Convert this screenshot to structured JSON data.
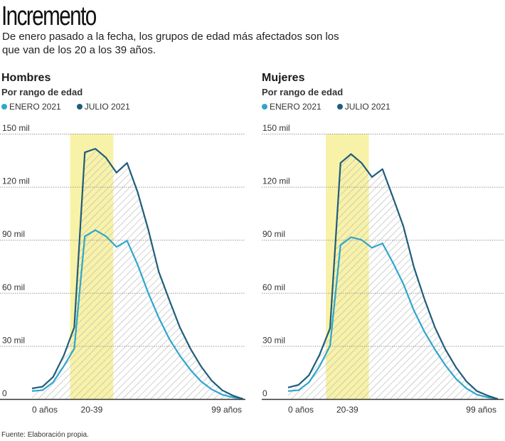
{
  "title": "Incremento",
  "subtitle": "De enero pasado a la fecha, los grupos de edad más afectados son los que van de los 20 a los 39 años.",
  "source": "Fuente: Elaboración propia.",
  "colors": {
    "enero": "#2fa6cc",
    "julio": "#1f5d7a",
    "highlight": "#f8f2a8",
    "hatch": "#bcbcbc",
    "grid": "#9a9a9a",
    "axis": "#333333"
  },
  "legend": [
    {
      "label": "ENERO 2021",
      "color": "#2fa6cc"
    },
    {
      "label": "JULIO 2021",
      "color": "#1f5d7a"
    }
  ],
  "chart_data": [
    {
      "type": "line",
      "title": "Hombres",
      "subtitle": "Por rango de edad",
      "ylim": [
        0,
        150000
      ],
      "yticks": [
        0,
        30000,
        60000,
        90000,
        120000,
        150000
      ],
      "yticklabels": [
        "0",
        "30 mil",
        "60 mil",
        "90 mil",
        "120 mil",
        "150 mil"
      ],
      "xticklabels": [
        {
          "label": "0 años",
          "index": 0
        },
        {
          "label": "20-39",
          "index": 5
        },
        {
          "label": "99 años",
          "index": 20
        }
      ],
      "highlight_range_label": "20-39",
      "highlight_range": [
        3.6,
        7.7
      ],
      "grid": true,
      "legend_position": "top-left",
      "x": [
        0,
        1,
        2,
        3,
        4,
        5,
        6,
        7,
        8,
        9,
        10,
        11,
        12,
        13,
        14,
        15,
        16,
        17,
        18,
        19,
        20
      ],
      "series": [
        {
          "name": "ENERO 2021",
          "values": [
            4500,
            5000,
            9500,
            18500,
            28500,
            92000,
            95500,
            92000,
            86000,
            89500,
            76000,
            60000,
            46000,
            34000,
            24500,
            16500,
            10000,
            5500,
            2500,
            1000,
            0
          ]
        },
        {
          "name": "JULIO 2021",
          "values": [
            6000,
            7000,
            12500,
            24500,
            40500,
            139500,
            141500,
            136500,
            128000,
            133500,
            117000,
            96000,
            72000,
            56000,
            40500,
            28500,
            18500,
            10500,
            5000,
            2000,
            0
          ]
        }
      ]
    },
    {
      "type": "line",
      "title": "Mujeres",
      "subtitle": "Por rango de edad",
      "ylim": [
        0,
        150000
      ],
      "yticks": [
        0,
        30000,
        60000,
        90000,
        120000,
        150000
      ],
      "yticklabels": [
        "0",
        "30 mil",
        "60 mil",
        "90 mil",
        "120 mil",
        "150 mil"
      ],
      "xticklabels": [
        {
          "label": "0 años",
          "index": 0
        },
        {
          "label": "20-39",
          "index": 5
        },
        {
          "label": "99 años",
          "index": 20
        }
      ],
      "highlight_range_label": "20-39",
      "highlight_range": [
        3.6,
        7.7
      ],
      "grid": true,
      "legend_position": "top-left",
      "x": [
        0,
        1,
        2,
        3,
        4,
        5,
        6,
        7,
        8,
        9,
        10,
        11,
        12,
        13,
        14,
        15,
        16,
        17,
        18,
        19,
        20
      ],
      "series": [
        {
          "name": "ENERO 2021",
          "values": [
            4500,
            5000,
            9500,
            18500,
            30000,
            87000,
            91500,
            90000,
            85500,
            88000,
            77000,
            65000,
            50000,
            38000,
            28000,
            19000,
            11500,
            6000,
            2500,
            1000,
            0
          ]
        },
        {
          "name": "JULIO 2021",
          "values": [
            6500,
            8000,
            13500,
            25000,
            40000,
            133500,
            138500,
            133500,
            125500,
            130000,
            114000,
            97500,
            74500,
            56500,
            40500,
            28000,
            18000,
            10000,
            4500,
            2000,
            0
          ]
        }
      ]
    }
  ]
}
